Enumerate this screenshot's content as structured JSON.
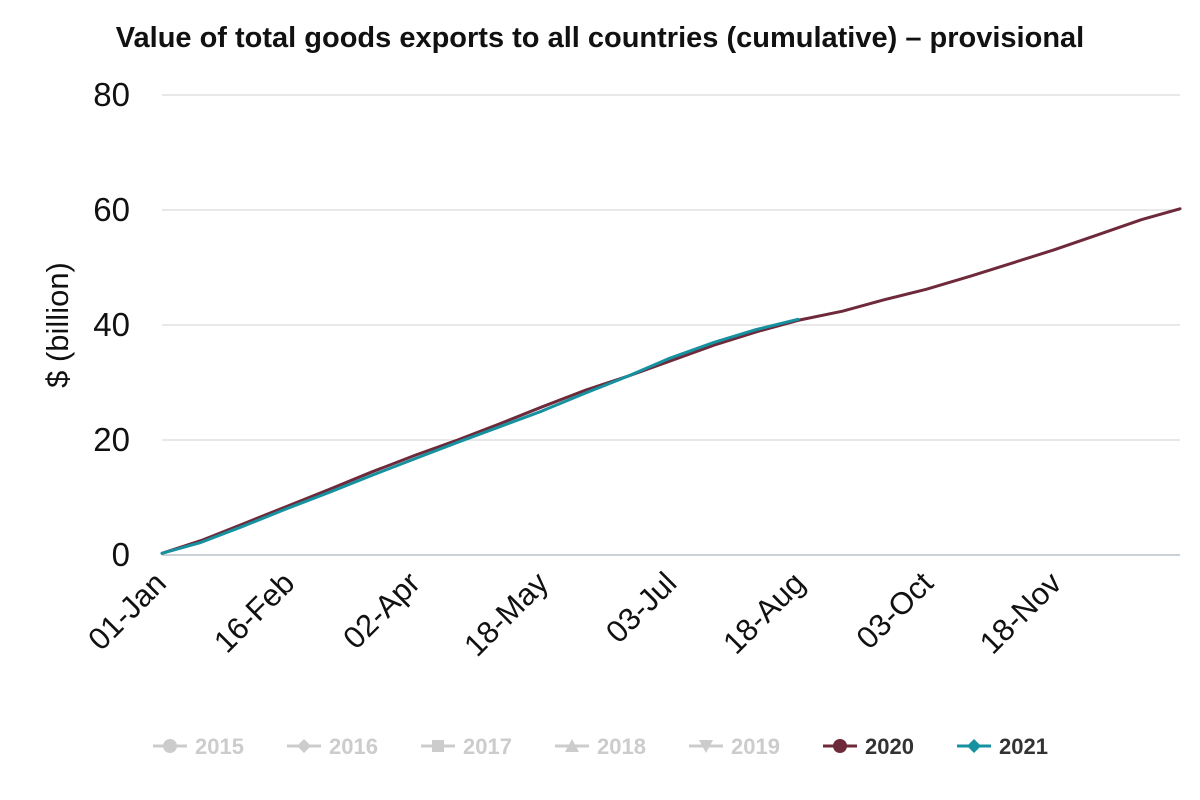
{
  "chart_data": {
    "type": "line",
    "title": "Value of total goods exports to all countries (cumulative) – provisional",
    "xlabel": "",
    "ylabel": "$ (billion)",
    "ylim": [
      0,
      80
    ],
    "yticks": [
      0,
      20,
      40,
      60,
      80
    ],
    "x_tick_labels": [
      "01-Jan",
      "16-Feb",
      "02-Apr",
      "18-May",
      "03-Jul",
      "18-Aug",
      "03-Oct",
      "18-Nov"
    ],
    "x_tick_days": [
      1,
      47,
      92,
      138,
      184,
      230,
      276,
      322
    ],
    "xlim_days": [
      1,
      366
    ],
    "grid": true,
    "legend_position": "bottom",
    "legend": [
      {
        "name": "2015",
        "marker": "circle",
        "color": "#cccccc",
        "active": false
      },
      {
        "name": "2016",
        "marker": "diamond",
        "color": "#cccccc",
        "active": false
      },
      {
        "name": "2017",
        "marker": "square",
        "color": "#cccccc",
        "active": false
      },
      {
        "name": "2018",
        "marker": "triangle-up",
        "color": "#cccccc",
        "active": false
      },
      {
        "name": "2019",
        "marker": "triangle-down",
        "color": "#cccccc",
        "active": false
      },
      {
        "name": "2020",
        "marker": "circle",
        "color": "#6e2a3a",
        "active": true
      },
      {
        "name": "2021",
        "marker": "diamond",
        "color": "#1591a0",
        "active": true
      }
    ],
    "series": [
      {
        "name": "2020",
        "color": "#6e2a3a",
        "x_days": [
          1,
          15,
          30,
          46,
          61,
          76,
          92,
          107,
          122,
          137,
          153,
          168,
          183,
          199,
          214,
          229,
          245,
          260,
          275,
          291,
          306,
          321,
          336,
          352,
          366
        ],
        "values": [
          0.3,
          2.5,
          5.4,
          8.5,
          11.4,
          14.4,
          17.4,
          20.0,
          22.8,
          25.7,
          28.7,
          31.1,
          33.7,
          36.5,
          38.8,
          40.8,
          42.4,
          44.4,
          46.2,
          48.5,
          50.8,
          53.1,
          55.6,
          58.3,
          60.2
        ]
      },
      {
        "name": "2021",
        "color": "#1591a0",
        "x_days": [
          1,
          15,
          30,
          46,
          61,
          76,
          92,
          107,
          122,
          137,
          153,
          168,
          183,
          199,
          214,
          229
        ],
        "values": [
          0.3,
          2.2,
          5.0,
          8.1,
          10.9,
          13.8,
          16.8,
          19.6,
          22.3,
          25.0,
          28.2,
          31.1,
          34.2,
          37.0,
          39.2,
          41.0
        ]
      }
    ]
  }
}
